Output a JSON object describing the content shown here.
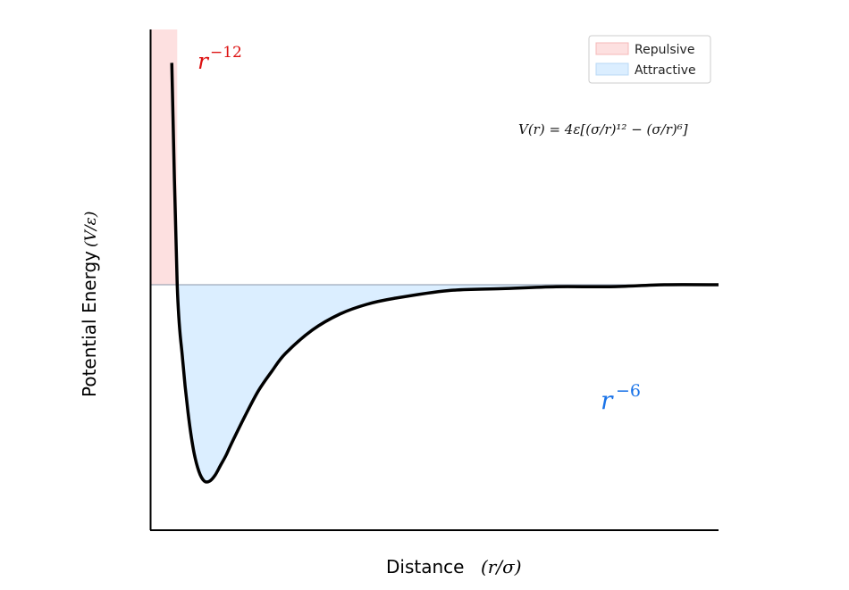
{
  "chart_data": {
    "type": "area",
    "title": "",
    "xlabel": "Distance",
    "xlabel_math": "(r/σ)",
    "ylabel": "Potential Energy",
    "ylabel_math": "(V/ε)",
    "xlim": [
      0.9,
      3.0
    ],
    "ylim": [
      -1.25,
      1.3
    ],
    "xticks": [],
    "yticks": [],
    "grid": false,
    "legend_placement": "top-right",
    "formula": "V(r) = 4ε[(σ/r)¹² − (σ/r)⁶]",
    "series": [
      {
        "x": [
          0.98,
          1.0,
          1.02,
          1.04,
          1.06,
          1.08,
          1.1,
          1.12,
          1.14,
          1.16,
          1.18,
          1.2,
          1.25,
          1.3,
          1.35,
          1.4,
          1.5,
          1.6,
          1.7,
          1.8,
          2.0,
          2.2,
          2.4,
          2.6,
          2.8,
          3.0
        ],
        "values": [
          1.13,
          0.0,
          -0.38,
          -0.65,
          -0.84,
          -0.95,
          -1.0,
          -1.0,
          -0.97,
          -0.92,
          -0.87,
          -0.81,
          -0.67,
          -0.54,
          -0.44,
          -0.35,
          -0.23,
          -0.15,
          -0.1,
          -0.07,
          -0.03,
          -0.02,
          -0.01,
          -0.01,
          0.0,
          0.0
        ]
      }
    ],
    "regions": [
      {
        "name": "Repulsive",
        "color": "#fde0e0",
        "x_range": [
          0.9,
          1.0
        ]
      },
      {
        "name": "Attractive",
        "color": "#dbeeff",
        "x_range": [
          1.0,
          3.0
        ]
      }
    ],
    "annotations": [
      {
        "text": "r",
        "superscript": "−12",
        "color": "#dd1111",
        "anchor": "repulsive-branch"
      },
      {
        "text": "r",
        "superscript": "−6",
        "color": "#1a73e8",
        "anchor": "attractive-tail"
      }
    ]
  },
  "legend": {
    "items": [
      {
        "label": "Repulsive",
        "color": "#fde0e0",
        "edge": "#f5b8b8"
      },
      {
        "label": "Attractive",
        "color": "#dbeeff",
        "edge": "#b8d8f5"
      }
    ]
  },
  "colors": {
    "curve": "#000000",
    "axis": "#000000",
    "zero_line": "#8a96a8"
  }
}
